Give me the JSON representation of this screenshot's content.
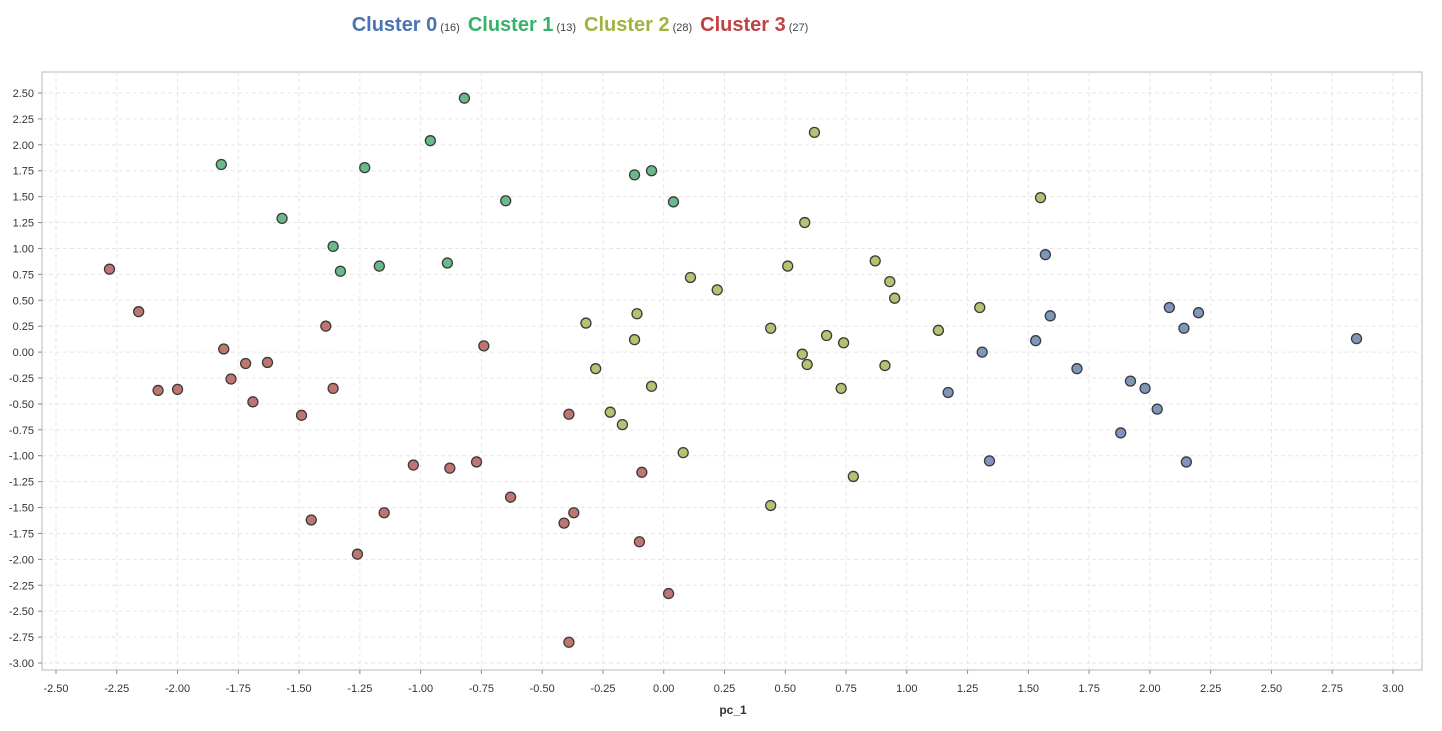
{
  "legend": [
    {
      "name": "Cluster 0",
      "count": "(16)",
      "color": "#4a74b4"
    },
    {
      "name": "Cluster 1",
      "count": "(13)",
      "color": "#35b36b"
    },
    {
      "name": "Cluster 2",
      "count": "(28)",
      "color": "#9db53c"
    },
    {
      "name": "Cluster 3",
      "count": "(27)",
      "color": "#c04242"
    }
  ],
  "chart_data": {
    "type": "scatter",
    "xlabel": "pc_1",
    "ylabel": "",
    "xlim": [
      -2.5,
      3.0
    ],
    "ylim": [
      -3.0,
      2.5
    ],
    "xticks": [
      "-2.50",
      "-2.25",
      "-2.00",
      "-1.75",
      "-1.50",
      "-1.25",
      "-1.00",
      "-0.75",
      "-0.50",
      "-0.25",
      "0.00",
      "0.25",
      "0.50",
      "0.75",
      "1.00",
      "1.25",
      "1.50",
      "1.75",
      "2.00",
      "2.25",
      "2.50",
      "2.75",
      "3.00"
    ],
    "yticks": [
      "2.50",
      "2.25",
      "2.00",
      "1.75",
      "1.50",
      "1.25",
      "1.00",
      "0.75",
      "0.50",
      "0.25",
      "0.00",
      "-0.25",
      "-0.50",
      "-0.75",
      "-1.00",
      "-1.25",
      "-1.50",
      "-1.75",
      "-2.00",
      "-2.25",
      "-2.50",
      "-2.75",
      "-3.00"
    ],
    "grid": true,
    "series": [
      {
        "name": "Cluster 0",
        "fill": "#7e96ba",
        "points": [
          [
            1.57,
            0.94
          ],
          [
            2.08,
            0.43
          ],
          [
            2.2,
            0.38
          ],
          [
            1.59,
            0.35
          ],
          [
            2.14,
            0.23
          ],
          [
            2.85,
            0.13
          ],
          [
            1.53,
            0.11
          ],
          [
            1.31,
            0.0
          ],
          [
            1.7,
            -0.16
          ],
          [
            1.92,
            -0.28
          ],
          [
            1.98,
            -0.35
          ],
          [
            1.17,
            -0.39
          ],
          [
            2.03,
            -0.55
          ],
          [
            1.88,
            -0.78
          ],
          [
            1.34,
            -1.05
          ],
          [
            2.15,
            -1.06
          ]
        ]
      },
      {
        "name": "Cluster 1",
        "fill": "#6ab98b",
        "points": [
          [
            -0.82,
            2.45
          ],
          [
            -0.96,
            2.04
          ],
          [
            -1.82,
            1.81
          ],
          [
            -1.23,
            1.78
          ],
          [
            -0.05,
            1.75
          ],
          [
            -0.12,
            1.71
          ],
          [
            -0.65,
            1.46
          ],
          [
            0.04,
            1.45
          ],
          [
            -1.57,
            1.29
          ],
          [
            -1.36,
            1.02
          ],
          [
            -0.89,
            0.86
          ],
          [
            -1.17,
            0.83
          ],
          [
            -1.33,
            0.78
          ]
        ]
      },
      {
        "name": "Cluster 2",
        "fill": "#b5c272",
        "points": [
          [
            0.62,
            2.12
          ],
          [
            1.55,
            1.49
          ],
          [
            0.58,
            1.25
          ],
          [
            0.87,
            0.88
          ],
          [
            0.51,
            0.83
          ],
          [
            0.11,
            0.72
          ],
          [
            0.93,
            0.68
          ],
          [
            0.22,
            0.6
          ],
          [
            0.95,
            0.52
          ],
          [
            1.3,
            0.43
          ],
          [
            -0.11,
            0.37
          ],
          [
            -0.32,
            0.28
          ],
          [
            0.44,
            0.23
          ],
          [
            1.13,
            0.21
          ],
          [
            0.67,
            0.16
          ],
          [
            -0.12,
            0.12
          ],
          [
            0.74,
            0.09
          ],
          [
            0.57,
            -0.02
          ],
          [
            0.59,
            -0.12
          ],
          [
            -0.28,
            -0.16
          ],
          [
            0.91,
            -0.13
          ],
          [
            -0.05,
            -0.33
          ],
          [
            0.73,
            -0.35
          ],
          [
            -0.22,
            -0.58
          ],
          [
            -0.17,
            -0.7
          ],
          [
            0.08,
            -0.97
          ],
          [
            0.78,
            -1.2
          ],
          [
            0.44,
            -1.48
          ]
        ]
      },
      {
        "name": "Cluster 3",
        "fill": "#c07670",
        "points": [
          [
            -2.28,
            0.8
          ],
          [
            -2.16,
            0.39
          ],
          [
            -1.39,
            0.25
          ],
          [
            -0.74,
            0.06
          ],
          [
            -1.81,
            0.03
          ],
          [
            -1.63,
            -0.1
          ],
          [
            -1.72,
            -0.11
          ],
          [
            -1.78,
            -0.26
          ],
          [
            -2.08,
            -0.37
          ],
          [
            -2.0,
            -0.36
          ],
          [
            -1.36,
            -0.35
          ],
          [
            -1.69,
            -0.48
          ],
          [
            -1.49,
            -0.61
          ],
          [
            -0.39,
            -0.6
          ],
          [
            -1.03,
            -1.09
          ],
          [
            -0.77,
            -1.06
          ],
          [
            -0.88,
            -1.12
          ],
          [
            -0.09,
            -1.16
          ],
          [
            -0.63,
            -1.4
          ],
          [
            -1.45,
            -1.62
          ],
          [
            -1.15,
            -1.55
          ],
          [
            -0.37,
            -1.55
          ],
          [
            -0.41,
            -1.65
          ],
          [
            -0.1,
            -1.83
          ],
          [
            -1.26,
            -1.95
          ],
          [
            0.02,
            -2.33
          ],
          [
            -0.39,
            -2.8
          ]
        ]
      }
    ]
  }
}
